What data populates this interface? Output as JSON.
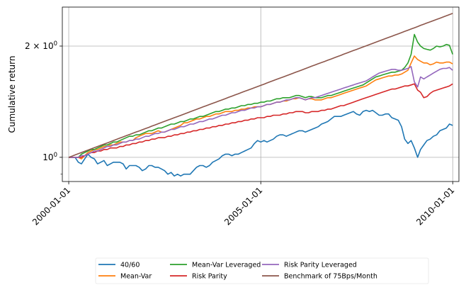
{
  "chart_data": {
    "type": "line",
    "title": "",
    "xlabel": "",
    "ylabel": "Cumulative return",
    "yscale": "log",
    "xlim": [
      "1999-11-01",
      "2010-03-01"
    ],
    "ylim": [
      0.86,
      2.55
    ],
    "grid": true,
    "legend_position": "bottom, outside plot",
    "x_ticks": [
      "2000-01-01",
      "2005-01-01",
      "2010-01-01"
    ],
    "y_ticks": [
      {
        "value": 1.0,
        "label": "10",
        "exp": "0"
      },
      {
        "value": 2.0,
        "label": "2 × 10",
        "exp": "0"
      }
    ],
    "x": [
      "2000-01-01",
      "2000-02-01",
      "2000-03-01",
      "2000-04-01",
      "2000-05-01",
      "2000-06-01",
      "2000-07-01",
      "2000-08-01",
      "2000-09-01",
      "2000-10-01",
      "2000-11-01",
      "2000-12-01",
      "2001-01-01",
      "2001-02-01",
      "2001-03-01",
      "2001-04-01",
      "2001-05-01",
      "2001-06-01",
      "2001-07-01",
      "2001-08-01",
      "2001-09-01",
      "2001-10-01",
      "2001-11-01",
      "2001-12-01",
      "2002-01-01",
      "2002-02-01",
      "2002-03-01",
      "2002-04-01",
      "2002-05-01",
      "2002-06-01",
      "2002-07-01",
      "2002-08-01",
      "2002-09-01",
      "2002-10-01",
      "2002-11-01",
      "2002-12-01",
      "2003-01-01",
      "2003-02-01",
      "2003-03-01",
      "2003-04-01",
      "2003-05-01",
      "2003-06-01",
      "2003-07-01",
      "2003-08-01",
      "2003-09-01",
      "2003-10-01",
      "2003-11-01",
      "2003-12-01",
      "2004-01-01",
      "2004-02-01",
      "2004-03-01",
      "2004-04-01",
      "2004-05-01",
      "2004-06-01",
      "2004-07-01",
      "2004-08-01",
      "2004-09-01",
      "2004-10-01",
      "2004-11-01",
      "2004-12-01",
      "2005-01-01",
      "2005-02-01",
      "2005-03-01",
      "2005-04-01",
      "2005-05-01",
      "2005-06-01",
      "2005-07-01",
      "2005-08-01",
      "2005-09-01",
      "2005-10-01",
      "2005-11-01",
      "2005-12-01",
      "2006-01-01",
      "2006-02-01",
      "2006-03-01",
      "2006-04-01",
      "2006-05-01",
      "2006-06-01",
      "2006-07-01",
      "2006-08-01",
      "2006-09-01",
      "2006-10-01",
      "2006-11-01",
      "2006-12-01",
      "2007-01-01",
      "2007-02-01",
      "2007-03-01",
      "2007-04-01",
      "2007-05-01",
      "2007-06-01",
      "2007-07-01",
      "2007-08-01",
      "2007-09-01",
      "2007-10-01",
      "2007-11-01",
      "2007-12-01",
      "2008-01-01",
      "2008-02-01",
      "2008-03-01",
      "2008-04-01",
      "2008-05-01",
      "2008-06-01",
      "2008-07-01",
      "2008-08-01",
      "2008-09-01",
      "2008-10-01",
      "2008-11-01",
      "2008-12-01",
      "2009-01-01",
      "2009-02-01",
      "2009-03-01",
      "2009-04-01",
      "2009-05-01",
      "2009-06-01",
      "2009-07-01",
      "2009-08-01",
      "2009-09-01",
      "2009-10-01",
      "2009-11-01",
      "2009-12-01",
      "2010-01-01"
    ],
    "series": [
      {
        "name": "40/60",
        "color": "#1f77b4",
        "values": [
          1.0,
          1.0,
          1.0,
          0.97,
          0.96,
          0.99,
          1.02,
          1.0,
          0.99,
          0.96,
          0.97,
          0.98,
          0.95,
          0.96,
          0.97,
          0.97,
          0.97,
          0.96,
          0.93,
          0.95,
          0.95,
          0.95,
          0.94,
          0.92,
          0.93,
          0.95,
          0.95,
          0.94,
          0.94,
          0.93,
          0.92,
          0.9,
          0.91,
          0.89,
          0.9,
          0.89,
          0.9,
          0.9,
          0.9,
          0.92,
          0.94,
          0.95,
          0.95,
          0.94,
          0.95,
          0.97,
          0.98,
          0.99,
          1.01,
          1.02,
          1.02,
          1.01,
          1.02,
          1.02,
          1.03,
          1.04,
          1.05,
          1.06,
          1.09,
          1.11,
          1.1,
          1.11,
          1.1,
          1.11,
          1.12,
          1.14,
          1.15,
          1.15,
          1.14,
          1.15,
          1.16,
          1.17,
          1.18,
          1.18,
          1.17,
          1.18,
          1.19,
          1.2,
          1.21,
          1.23,
          1.24,
          1.25,
          1.27,
          1.29,
          1.29,
          1.29,
          1.3,
          1.31,
          1.32,
          1.33,
          1.31,
          1.3,
          1.33,
          1.34,
          1.33,
          1.34,
          1.32,
          1.3,
          1.3,
          1.31,
          1.31,
          1.28,
          1.27,
          1.26,
          1.21,
          1.12,
          1.09,
          1.11,
          1.06,
          1.0,
          1.05,
          1.08,
          1.11,
          1.12,
          1.14,
          1.15,
          1.18,
          1.19,
          1.2,
          1.23,
          1.22
        ]
      },
      {
        "name": "Mean-Var",
        "color": "#ff7f0e",
        "values": [
          1.0,
          1.0,
          1.0,
          1.0,
          0.99,
          1.01,
          1.03,
          1.04,
          1.05,
          1.05,
          1.06,
          1.07,
          1.07,
          1.08,
          1.08,
          1.09,
          1.1,
          1.1,
          1.1,
          1.11,
          1.11,
          1.13,
          1.14,
          1.15,
          1.16,
          1.16,
          1.16,
          1.17,
          1.18,
          1.17,
          1.17,
          1.18,
          1.19,
          1.2,
          1.21,
          1.22,
          1.24,
          1.24,
          1.25,
          1.26,
          1.27,
          1.27,
          1.28,
          1.29,
          1.29,
          1.3,
          1.31,
          1.31,
          1.32,
          1.33,
          1.33,
          1.33,
          1.34,
          1.34,
          1.35,
          1.35,
          1.36,
          1.36,
          1.37,
          1.37,
          1.37,
          1.38,
          1.39,
          1.39,
          1.4,
          1.41,
          1.41,
          1.42,
          1.42,
          1.43,
          1.44,
          1.44,
          1.45,
          1.44,
          1.43,
          1.44,
          1.44,
          1.43,
          1.43,
          1.43,
          1.44,
          1.45,
          1.45,
          1.46,
          1.47,
          1.48,
          1.49,
          1.5,
          1.51,
          1.52,
          1.53,
          1.54,
          1.55,
          1.56,
          1.58,
          1.6,
          1.62,
          1.63,
          1.64,
          1.65,
          1.66,
          1.66,
          1.67,
          1.67,
          1.68,
          1.7,
          1.72,
          1.8,
          1.88,
          1.84,
          1.82,
          1.8,
          1.8,
          1.78,
          1.79,
          1.81,
          1.8,
          1.8,
          1.81,
          1.81,
          1.79
        ]
      },
      {
        "name": "Mean-Var Leveraged",
        "color": "#2ca02c",
        "values": [
          1.0,
          1.0,
          1.0,
          1.0,
          1.02,
          1.03,
          1.04,
          1.05,
          1.05,
          1.06,
          1.07,
          1.08,
          1.08,
          1.09,
          1.1,
          1.1,
          1.11,
          1.12,
          1.13,
          1.14,
          1.14,
          1.15,
          1.15,
          1.16,
          1.17,
          1.18,
          1.18,
          1.19,
          1.2,
          1.2,
          1.21,
          1.22,
          1.23,
          1.23,
          1.24,
          1.25,
          1.25,
          1.26,
          1.27,
          1.27,
          1.28,
          1.29,
          1.29,
          1.3,
          1.31,
          1.32,
          1.33,
          1.33,
          1.34,
          1.35,
          1.35,
          1.36,
          1.36,
          1.37,
          1.38,
          1.38,
          1.39,
          1.39,
          1.4,
          1.4,
          1.41,
          1.41,
          1.42,
          1.42,
          1.43,
          1.44,
          1.44,
          1.45,
          1.45,
          1.45,
          1.46,
          1.47,
          1.47,
          1.46,
          1.45,
          1.46,
          1.46,
          1.45,
          1.45,
          1.45,
          1.46,
          1.47,
          1.47,
          1.48,
          1.49,
          1.5,
          1.51,
          1.52,
          1.53,
          1.54,
          1.55,
          1.56,
          1.57,
          1.59,
          1.61,
          1.63,
          1.65,
          1.66,
          1.67,
          1.68,
          1.69,
          1.7,
          1.7,
          1.71,
          1.72,
          1.75,
          1.8,
          1.9,
          2.15,
          2.05,
          2.0,
          1.97,
          1.96,
          1.95,
          1.97,
          2.0,
          1.99,
          2.0,
          2.02,
          2.01,
          1.9
        ]
      },
      {
        "name": "Risk Parity",
        "color": "#d62728",
        "values": [
          1.0,
          1.0,
          1.0,
          1.0,
          1.0,
          1.01,
          1.02,
          1.03,
          1.03,
          1.04,
          1.04,
          1.05,
          1.05,
          1.06,
          1.06,
          1.06,
          1.07,
          1.07,
          1.08,
          1.08,
          1.09,
          1.09,
          1.1,
          1.1,
          1.11,
          1.11,
          1.12,
          1.12,
          1.13,
          1.13,
          1.13,
          1.14,
          1.14,
          1.15,
          1.15,
          1.16,
          1.16,
          1.17,
          1.17,
          1.18,
          1.18,
          1.19,
          1.19,
          1.2,
          1.2,
          1.21,
          1.21,
          1.22,
          1.22,
          1.23,
          1.23,
          1.24,
          1.24,
          1.25,
          1.25,
          1.26,
          1.26,
          1.27,
          1.27,
          1.28,
          1.28,
          1.28,
          1.29,
          1.29,
          1.3,
          1.3,
          1.3,
          1.31,
          1.31,
          1.32,
          1.32,
          1.33,
          1.33,
          1.33,
          1.32,
          1.32,
          1.33,
          1.33,
          1.33,
          1.34,
          1.34,
          1.35,
          1.35,
          1.36,
          1.37,
          1.38,
          1.38,
          1.39,
          1.4,
          1.41,
          1.42,
          1.43,
          1.44,
          1.45,
          1.46,
          1.47,
          1.48,
          1.49,
          1.5,
          1.51,
          1.52,
          1.53,
          1.53,
          1.54,
          1.55,
          1.56,
          1.56,
          1.57,
          1.58,
          1.52,
          1.5,
          1.45,
          1.46,
          1.49,
          1.51,
          1.52,
          1.53,
          1.54,
          1.55,
          1.56,
          1.58
        ]
      },
      {
        "name": "Risk Parity Leveraged",
        "color": "#9467bd",
        "values": [
          1.0,
          1.0,
          1.0,
          1.0,
          1.01,
          1.01,
          1.02,
          1.03,
          1.04,
          1.04,
          1.05,
          1.06,
          1.07,
          1.07,
          1.08,
          1.08,
          1.09,
          1.1,
          1.1,
          1.11,
          1.11,
          1.12,
          1.12,
          1.13,
          1.14,
          1.14,
          1.15,
          1.16,
          1.16,
          1.17,
          1.17,
          1.18,
          1.19,
          1.19,
          1.2,
          1.21,
          1.21,
          1.22,
          1.23,
          1.23,
          1.24,
          1.25,
          1.25,
          1.26,
          1.27,
          1.27,
          1.28,
          1.29,
          1.3,
          1.3,
          1.31,
          1.32,
          1.32,
          1.33,
          1.34,
          1.34,
          1.35,
          1.36,
          1.36,
          1.37,
          1.37,
          1.38,
          1.39,
          1.39,
          1.4,
          1.41,
          1.41,
          1.42,
          1.43,
          1.43,
          1.44,
          1.45,
          1.45,
          1.44,
          1.43,
          1.44,
          1.45,
          1.45,
          1.46,
          1.47,
          1.48,
          1.49,
          1.5,
          1.51,
          1.52,
          1.53,
          1.54,
          1.55,
          1.56,
          1.57,
          1.58,
          1.59,
          1.6,
          1.61,
          1.63,
          1.65,
          1.67,
          1.69,
          1.7,
          1.71,
          1.72,
          1.73,
          1.73,
          1.72,
          1.72,
          1.73,
          1.74,
          1.76,
          1.6,
          1.55,
          1.65,
          1.63,
          1.65,
          1.67,
          1.69,
          1.71,
          1.73,
          1.74,
          1.74,
          1.75,
          1.72
        ]
      },
      {
        "name": "Benchmark of 75Bps/Month",
        "color": "#8c564b",
        "values": [
          1.0,
          1.0075,
          1.0151,
          1.0227,
          1.0303,
          1.0381,
          1.0459,
          1.0537,
          1.0616,
          1.0696,
          1.0776,
          1.0857,
          1.0938,
          1.102,
          1.1103,
          1.1186,
          1.127,
          1.1355,
          1.144,
          1.1526,
          1.1612,
          1.1699,
          1.1787,
          1.1876,
          1.1965,
          1.2054,
          1.2145,
          1.2236,
          1.2328,
          1.242,
          1.2513,
          1.2607,
          1.2702,
          1.2797,
          1.2893,
          1.299,
          1.3087,
          1.3185,
          1.3284,
          1.3384,
          1.3484,
          1.3585,
          1.3687,
          1.379,
          1.3893,
          1.3997,
          1.4102,
          1.4208,
          1.4315,
          1.4422,
          1.453,
          1.4639,
          1.4749,
          1.486,
          1.4971,
          1.5083,
          1.5197,
          1.5311,
          1.5425,
          1.5541,
          1.5658,
          1.5775,
          1.5893,
          1.6013,
          1.6133,
          1.6254,
          1.6376,
          1.6498,
          1.6622,
          1.6747,
          1.6873,
          1.6999,
          1.7127,
          1.7255,
          1.7385,
          1.7515,
          1.7646,
          1.7779,
          1.7912,
          1.8046,
          1.8182,
          1.8318,
          1.8455,
          1.8594,
          1.8733,
          1.8874,
          1.9015,
          1.9158,
          1.9302,
          1.9446,
          1.9592,
          1.9739,
          1.9887,
          2.0036,
          2.0187,
          2.0338,
          2.049,
          2.0644,
          2.0799,
          2.0955,
          2.1112,
          2.127,
          2.143,
          2.1591,
          2.1753,
          2.1916,
          2.208,
          2.2246,
          2.2413,
          2.2581,
          2.275,
          2.2921,
          2.3093,
          2.3266,
          2.3441,
          2.3617,
          2.3794,
          2.3972,
          2.4152,
          2.4333,
          2.4516
        ]
      }
    ]
  }
}
